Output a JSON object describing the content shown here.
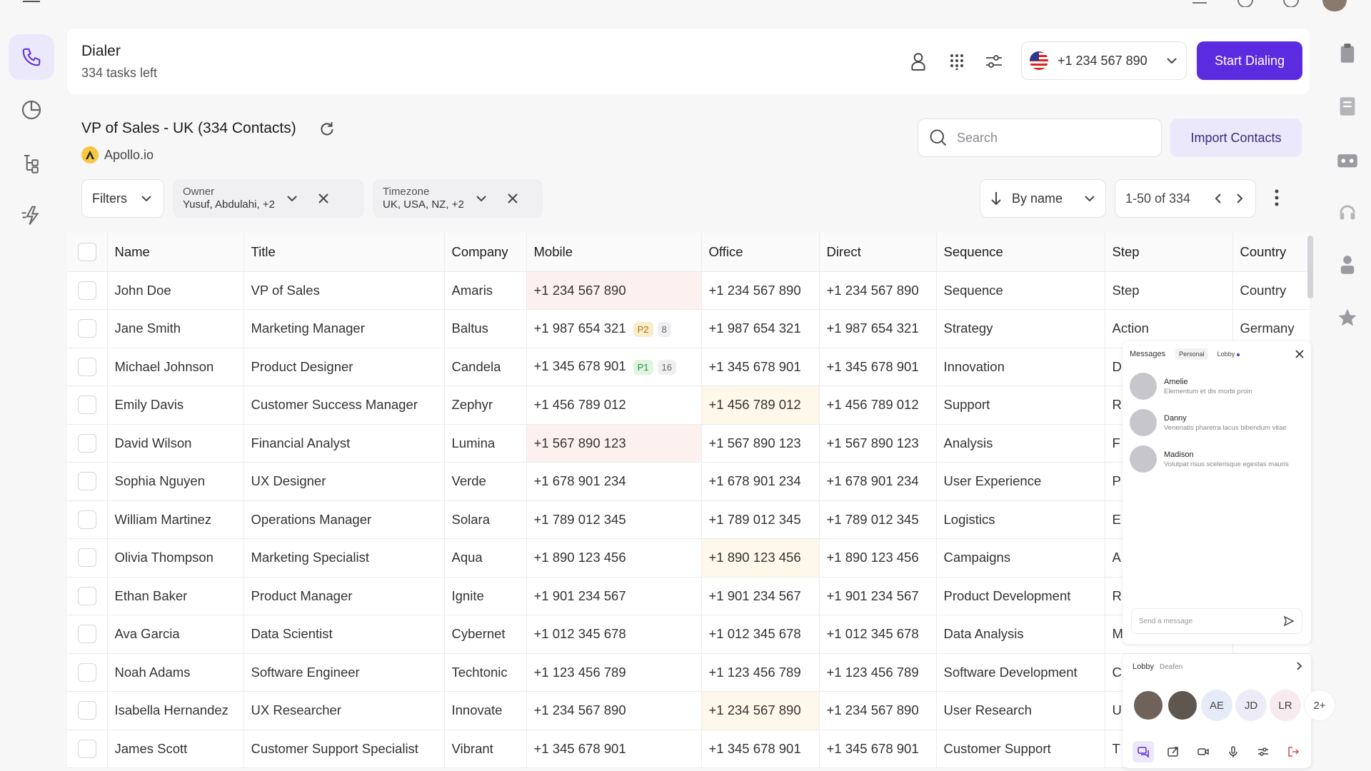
{
  "header": {
    "title": "Dialer",
    "subtitle": "334 tasks left",
    "phone_number": "+1 234 567 890",
    "start_label": "Start Dialing"
  },
  "list": {
    "title": "VP of Sales - UK (334 Contacts)",
    "source": "Apollo.io",
    "search_placeholder": "Search",
    "import_label": "Import Contacts"
  },
  "filters": {
    "label": "Filters",
    "owner_label": "Owner",
    "owner_value": "Yusuf, Abdulahi, +2",
    "timezone_label": "Timezone",
    "timezone_value": "UK, USA, NZ, +2",
    "sort_label": "By name",
    "pagination": "1-50 of 334"
  },
  "table": {
    "columns": [
      "Name",
      "Title",
      "Company",
      "Mobile",
      "Office",
      "Direct",
      "Sequence",
      "Step",
      "Country"
    ],
    "rows": [
      {
        "name": "John Doe",
        "title": "VP of Sales",
        "company": "Amaris",
        "mobile": "+1 234 567 890",
        "office": "+1 234 567 890",
        "direct": "+1 234 567 890",
        "sequence": "Sequence",
        "step": "Step",
        "country": "Country"
      },
      {
        "name": "Jane Smith",
        "title": "Marketing Manager",
        "company": "Baltus",
        "mobile": "+1 987 654 321",
        "priority": "P2",
        "count": "8",
        "office": "+1 987 654 321",
        "direct": "+1 987 654 321",
        "sequence": "Strategy",
        "step": "Action",
        "country": "Germany"
      },
      {
        "name": "Michael Johnson",
        "title": "Product Designer",
        "company": "Candela",
        "mobile": "+1 345 678 901",
        "priority": "P1",
        "count": "16",
        "office": "+1 345 678 901",
        "direct": "+1 345 678 901",
        "sequence": "Innovation",
        "step": "D",
        "country": ""
      },
      {
        "name": "Emily Davis",
        "title": "Customer Success Manager",
        "company": "Zephyr",
        "mobile": "+1 456 789 012",
        "office": "+1 456 789 012",
        "direct": "+1 456 789 012",
        "sequence": "Support",
        "step": "R",
        "country": ""
      },
      {
        "name": "David Wilson",
        "title": "Financial Analyst",
        "company": "Lumina",
        "mobile": "+1 567 890 123",
        "office": "+1 567 890 123",
        "direct": "+1 567 890 123",
        "sequence": "Analysis",
        "step": "F",
        "country": ""
      },
      {
        "name": "Sophia Nguyen",
        "title": "UX Designer",
        "company": "Verde",
        "mobile": "+1 678 901 234",
        "office": "+1 678 901 234",
        "direct": "+1 678 901 234",
        "sequence": "User Experience",
        "step": "P",
        "country": ""
      },
      {
        "name": "William Martinez",
        "title": "Operations Manager",
        "company": "Solara",
        "mobile": "+1 789 012 345",
        "office": "+1 789 012 345",
        "direct": "+1 789 012 345",
        "sequence": "Logistics",
        "step": "E",
        "country": ""
      },
      {
        "name": "Olivia Thompson",
        "title": "Marketing Specialist",
        "company": "Aqua",
        "mobile": "+1 890 123 456",
        "office": "+1 890 123 456",
        "direct": "+1 890 123 456",
        "sequence": "Campaigns",
        "step": "A",
        "country": ""
      },
      {
        "name": "Ethan Baker",
        "title": "Product Manager",
        "company": "Ignite",
        "mobile": "+1 901 234 567",
        "office": "+1 901 234 567",
        "direct": "+1 901 234 567",
        "sequence": "Product Development",
        "step": "R",
        "country": ""
      },
      {
        "name": "Ava Garcia",
        "title": "Data Scientist",
        "company": "Cybernet",
        "mobile": "+1 012 345 678",
        "office": "+1 012 345 678",
        "direct": "+1 012 345 678",
        "sequence": "Data Analysis",
        "step": "M",
        "country": ""
      },
      {
        "name": "Noah Adams",
        "title": "Software Engineer",
        "company": "Techtonic",
        "mobile": "+1 123 456 789",
        "office": "+1 123 456 789",
        "direct": "+1 123 456 789",
        "sequence": "Software Development",
        "step": "C",
        "country": ""
      },
      {
        "name": "Isabella Hernandez",
        "title": "UX Researcher",
        "company": "Innovate",
        "mobile": "+1 234 567 890",
        "office": "+1 234 567 890",
        "direct": "+1 234 567 890",
        "sequence": "User Research",
        "step": "U",
        "country": ""
      },
      {
        "name": "James Scott",
        "title": "Customer Support Specialist",
        "company": "Vibrant",
        "mobile": "+1 345 678 901",
        "office": "+1 345 678 901",
        "direct": "+1 345 678 901",
        "sequence": "Customer Support",
        "step": "T",
        "country": ""
      }
    ]
  },
  "messages": {
    "title": "Messages",
    "tabs": [
      "Personal",
      "Lobby"
    ],
    "conversations": [
      {
        "name": "Amelie",
        "preview": "Elementum et dis morbi proin"
      },
      {
        "name": "Danny",
        "preview": "Venenatis pharetra lacus bibendum vitae"
      },
      {
        "name": "Madison",
        "preview": "Volutpat risus scelerisque egestas mauris"
      }
    ],
    "input_placeholder": "Send a message"
  },
  "lobby": {
    "title": "Lobby",
    "subtitle": "Deafen",
    "initials": [
      "AE",
      "JD",
      "LR",
      "2+"
    ]
  },
  "colors": {
    "accent": "#5b2be0",
    "accent_soft": "#ece8fb",
    "highlight_red": "#fdf1ef",
    "highlight_yellow": "#fdf8e9"
  }
}
